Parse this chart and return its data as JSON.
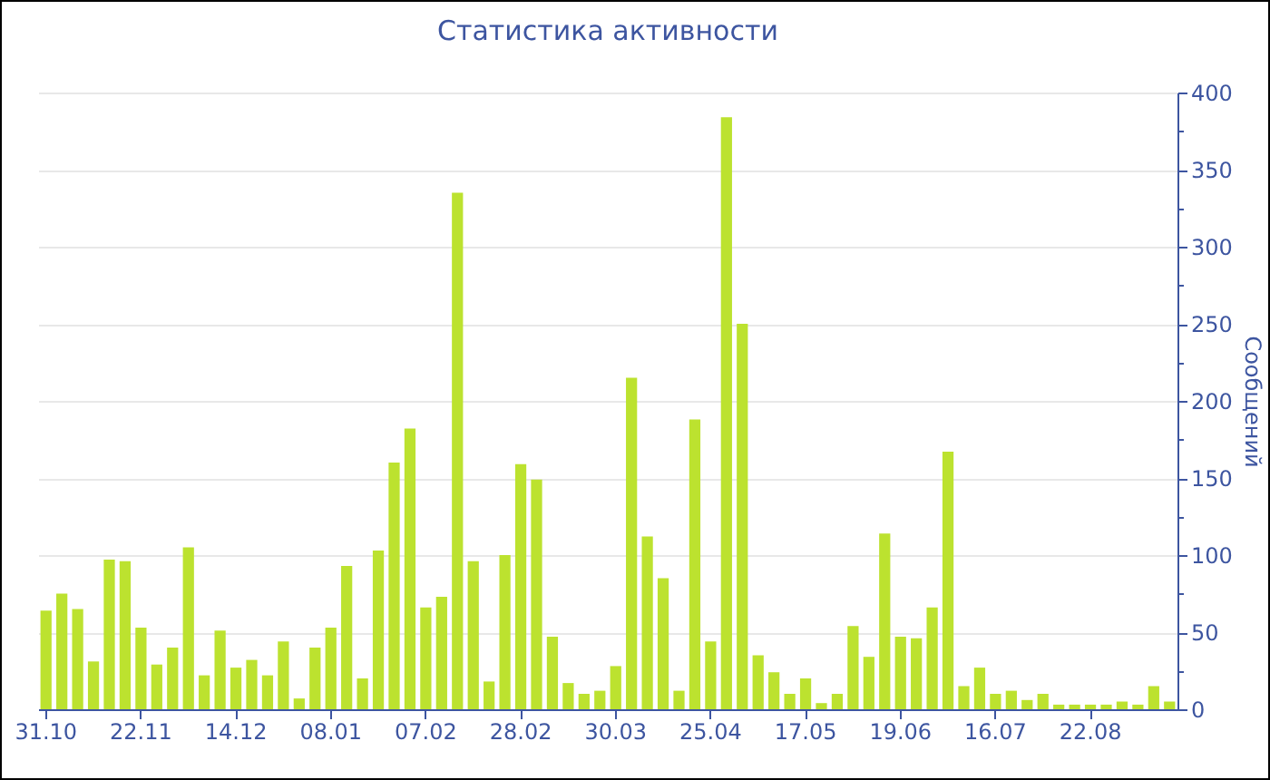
{
  "chart_data": {
    "type": "bar",
    "title": "Статистика активности",
    "ylabel": "Сообщений",
    "color": "#bce22f",
    "categories": [
      "31.10",
      null,
      null,
      null,
      null,
      null,
      "22.11",
      null,
      null,
      null,
      null,
      null,
      "14.12",
      null,
      null,
      null,
      null,
      null,
      "08.01",
      null,
      null,
      null,
      null,
      null,
      "07.02",
      null,
      null,
      null,
      null,
      null,
      "28.02",
      null,
      null,
      null,
      null,
      null,
      "30.03",
      null,
      null,
      null,
      null,
      null,
      "25.04",
      null,
      null,
      null,
      null,
      null,
      "17.05",
      null,
      null,
      null,
      null,
      null,
      "19.06",
      null,
      null,
      null,
      null,
      null,
      "16.07",
      null,
      null,
      null,
      null,
      null,
      "22.08",
      null,
      null,
      null,
      null,
      null
    ],
    "values": [
      64,
      75,
      65,
      31,
      97,
      96,
      53,
      29,
      40,
      105,
      22,
      51,
      27,
      32,
      22,
      44,
      7,
      40,
      53,
      93,
      20,
      103,
      160,
      182,
      66,
      73,
      335,
      96,
      18,
      100,
      159,
      149,
      47,
      17,
      10,
      12,
      28,
      215,
      112,
      85,
      12,
      188,
      44,
      384,
      250,
      35,
      24,
      10,
      20,
      4,
      10,
      54,
      34,
      114,
      47,
      46,
      66,
      167,
      15,
      27,
      10,
      12,
      6,
      10,
      3,
      3,
      3,
      3,
      5,
      3,
      15,
      5
    ],
    "ylim": [
      0,
      400
    ],
    "yticks": [
      0,
      {
        "value": 25,
        "label": null
      },
      50,
      {
        "value": 75,
        "label": null
      },
      100,
      {
        "value": 125,
        "label": null
      },
      150,
      {
        "value": 175,
        "label": null
      },
      200,
      {
        "value": 225,
        "label": null
      },
      250,
      {
        "value": 275,
        "label": null
      },
      300,
      {
        "value": 325,
        "label": null
      },
      350,
      {
        "value": 375,
        "label": null
      },
      400
    ],
    "grid": "y"
  }
}
